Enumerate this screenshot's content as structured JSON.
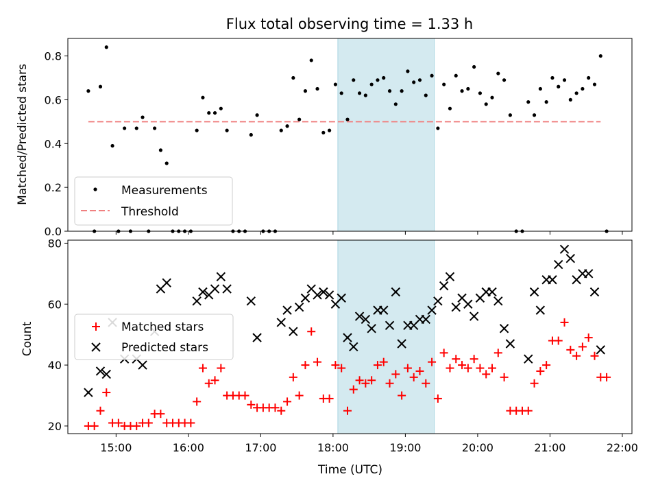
{
  "chart_data": [
    {
      "type": "scatter",
      "title": "Flux total observing time = 1.33 h",
      "xlabel": "",
      "ylabel": "Matched/Predicted stars",
      "xlim": [
        "14:20",
        "22:08"
      ],
      "ylim": [
        0,
        0.88
      ],
      "yticks": [
        "0.0",
        "0.2",
        "0.4",
        "0.6",
        "0.8"
      ],
      "highlight_span": {
        "from": "18:04",
        "to": "19:24",
        "color": "#d4eaf0"
      },
      "legend": {
        "placement": "lower-left",
        "entries": [
          {
            "label": "Measurements",
            "marker": "dot",
            "color": "#000000"
          },
          {
            "label": "Threshold",
            "marker": "dashed-line",
            "color": "#f08080"
          }
        ]
      },
      "series": [
        {
          "name": "Measurements",
          "color": "#000000",
          "points": [
            [
              "14:37",
              0.64
            ],
            [
              "14:42",
              0.0
            ],
            [
              "14:47",
              0.66
            ],
            [
              "14:52",
              0.84
            ],
            [
              "14:57",
              0.39
            ],
            [
              "15:02",
              0.0
            ],
            [
              "15:07",
              0.47
            ],
            [
              "15:12",
              0.0
            ],
            [
              "15:17",
              0.47
            ],
            [
              "15:22",
              0.52
            ],
            [
              "15:27",
              0.0
            ],
            [
              "15:32",
              0.47
            ],
            [
              "15:37",
              0.37
            ],
            [
              "15:42",
              0.31
            ],
            [
              "15:47",
              0.0
            ],
            [
              "15:52",
              0.0
            ],
            [
              "15:57",
              0.0
            ],
            [
              "16:02",
              0.0
            ],
            [
              "16:07",
              0.46
            ],
            [
              "16:12",
              0.61
            ],
            [
              "16:17",
              0.54
            ],
            [
              "16:22",
              0.54
            ],
            [
              "16:27",
              0.56
            ],
            [
              "16:32",
              0.46
            ],
            [
              "16:37",
              0.0
            ],
            [
              "16:42",
              0.0
            ],
            [
              "16:47",
              0.0
            ],
            [
              "16:52",
              0.44
            ],
            [
              "16:57",
              0.53
            ],
            [
              "17:02",
              0.0
            ],
            [
              "17:07",
              0.0
            ],
            [
              "17:12",
              0.0
            ],
            [
              "17:17",
              0.46
            ],
            [
              "17:22",
              0.48
            ],
            [
              "17:27",
              0.7
            ],
            [
              "17:32",
              0.51
            ],
            [
              "17:37",
              0.64
            ],
            [
              "17:42",
              0.78
            ],
            [
              "17:47",
              0.65
            ],
            [
              "17:52",
              0.45
            ],
            [
              "17:57",
              0.46
            ],
            [
              "18:02",
              0.67
            ],
            [
              "18:07",
              0.63
            ],
            [
              "18:12",
              0.51
            ],
            [
              "18:17",
              0.69
            ],
            [
              "18:22",
              0.63
            ],
            [
              "18:27",
              0.62
            ],
            [
              "18:32",
              0.67
            ],
            [
              "18:37",
              0.69
            ],
            [
              "18:42",
              0.7
            ],
            [
              "18:47",
              0.64
            ],
            [
              "18:52",
              0.58
            ],
            [
              "18:57",
              0.64
            ],
            [
              "19:02",
              0.73
            ],
            [
              "19:07",
              0.68
            ],
            [
              "19:12",
              0.69
            ],
            [
              "19:17",
              0.62
            ],
            [
              "19:22",
              0.71
            ],
            [
              "19:27",
              0.47
            ],
            [
              "19:32",
              0.67
            ],
            [
              "19:37",
              0.56
            ],
            [
              "19:42",
              0.71
            ],
            [
              "19:47",
              0.64
            ],
            [
              "19:52",
              0.65
            ],
            [
              "19:57",
              0.75
            ],
            [
              "20:02",
              0.63
            ],
            [
              "20:07",
              0.58
            ],
            [
              "20:12",
              0.61
            ],
            [
              "20:17",
              0.72
            ],
            [
              "20:22",
              0.69
            ],
            [
              "20:27",
              0.53
            ],
            [
              "20:32",
              0.0
            ],
            [
              "20:37",
              0.0
            ],
            [
              "20:42",
              0.59
            ],
            [
              "20:47",
              0.53
            ],
            [
              "20:52",
              0.65
            ],
            [
              "20:57",
              0.59
            ],
            [
              "21:02",
              0.7
            ],
            [
              "21:07",
              0.66
            ],
            [
              "21:12",
              0.69
            ],
            [
              "21:17",
              0.6
            ],
            [
              "21:22",
              0.63
            ],
            [
              "21:27",
              0.65
            ],
            [
              "21:32",
              0.7
            ],
            [
              "21:37",
              0.67
            ],
            [
              "21:42",
              0.8
            ],
            [
              "21:47",
              0.0
            ]
          ]
        },
        {
          "name": "Threshold",
          "color": "#f08080",
          "style": "dashed",
          "points": [
            [
              "14:37",
              0.5
            ],
            [
              "21:42",
              0.5
            ]
          ]
        }
      ]
    },
    {
      "type": "scatter",
      "title": "",
      "xlabel": "Time (UTC)",
      "ylabel": "Count",
      "xlim": [
        "14:20",
        "22:08"
      ],
      "ylim": [
        17.5,
        81
      ],
      "yticks": [
        "20",
        "40",
        "60",
        "80"
      ],
      "xticks": [
        "15:00",
        "16:00",
        "17:00",
        "18:00",
        "19:00",
        "20:00",
        "21:00",
        "22:00"
      ],
      "highlight_span": {
        "from": "18:04",
        "to": "19:24",
        "color": "#d4eaf0"
      },
      "legend": {
        "placement": "center-left",
        "entries": [
          {
            "label": "Matched stars",
            "marker": "plus",
            "color": "#ff0000"
          },
          {
            "label": "Predicted stars",
            "marker": "x",
            "color": "#000000"
          }
        ]
      },
      "series": [
        {
          "name": "Matched stars",
          "color": "#ff0000",
          "marker": "plus",
          "points": [
            [
              "14:37",
              20
            ],
            [
              "14:42",
              20
            ],
            [
              "14:47",
              25
            ],
            [
              "14:52",
              31
            ],
            [
              "14:57",
              21
            ],
            [
              "15:02",
              21
            ],
            [
              "15:07",
              20
            ],
            [
              "15:12",
              20
            ],
            [
              "15:17",
              20
            ],
            [
              "15:22",
              21
            ],
            [
              "15:27",
              21
            ],
            [
              "15:32",
              24
            ],
            [
              "15:37",
              24
            ],
            [
              "15:42",
              21
            ],
            [
              "15:47",
              21
            ],
            [
              "15:52",
              21
            ],
            [
              "15:57",
              21
            ],
            [
              "16:02",
              21
            ],
            [
              "16:07",
              28
            ],
            [
              "16:12",
              39
            ],
            [
              "16:17",
              34
            ],
            [
              "16:22",
              35
            ],
            [
              "16:27",
              39
            ],
            [
              "16:32",
              30
            ],
            [
              "16:37",
              30
            ],
            [
              "16:42",
              30
            ],
            [
              "16:47",
              30
            ],
            [
              "16:52",
              27
            ],
            [
              "16:57",
              26
            ],
            [
              "17:02",
              26
            ],
            [
              "17:07",
              26
            ],
            [
              "17:12",
              26
            ],
            [
              "17:17",
              25
            ],
            [
              "17:22",
              28
            ],
            [
              "17:27",
              36
            ],
            [
              "17:32",
              30
            ],
            [
              "17:37",
              40
            ],
            [
              "17:42",
              51
            ],
            [
              "17:47",
              41
            ],
            [
              "17:52",
              29
            ],
            [
              "17:57",
              29
            ],
            [
              "18:02",
              40
            ],
            [
              "18:07",
              39
            ],
            [
              "18:12",
              25
            ],
            [
              "18:17",
              32
            ],
            [
              "18:22",
              35
            ],
            [
              "18:27",
              34
            ],
            [
              "18:32",
              35
            ],
            [
              "18:37",
              40
            ],
            [
              "18:42",
              41
            ],
            [
              "18:47",
              34
            ],
            [
              "18:52",
              37
            ],
            [
              "18:57",
              30
            ],
            [
              "19:02",
              39
            ],
            [
              "19:07",
              36
            ],
            [
              "19:12",
              38
            ],
            [
              "19:17",
              34
            ],
            [
              "19:22",
              41
            ],
            [
              "19:27",
              29
            ],
            [
              "19:32",
              44
            ],
            [
              "19:37",
              39
            ],
            [
              "19:42",
              42
            ],
            [
              "19:47",
              40
            ],
            [
              "19:52",
              39
            ],
            [
              "19:57",
              42
            ],
            [
              "20:02",
              39
            ],
            [
              "20:07",
              37
            ],
            [
              "20:12",
              39
            ],
            [
              "20:17",
              44
            ],
            [
              "20:22",
              36
            ],
            [
              "20:27",
              25
            ],
            [
              "20:32",
              25
            ],
            [
              "20:37",
              25
            ],
            [
              "20:42",
              25
            ],
            [
              "20:47",
              34
            ],
            [
              "20:52",
              38
            ],
            [
              "20:57",
              40
            ],
            [
              "21:02",
              48
            ],
            [
              "21:07",
              48
            ],
            [
              "21:12",
              54
            ],
            [
              "21:17",
              45
            ],
            [
              "21:22",
              43
            ],
            [
              "21:27",
              46
            ],
            [
              "21:32",
              49
            ],
            [
              "21:37",
              43
            ],
            [
              "21:42",
              36
            ],
            [
              "21:47",
              36
            ]
          ]
        },
        {
          "name": "Predicted stars",
          "color": "#000000",
          "marker": "x",
          "points": [
            [
              "14:37",
              31
            ],
            [
              "14:47",
              38
            ],
            [
              "14:52",
              37
            ],
            [
              "14:57",
              54
            ],
            [
              "15:07",
              42
            ],
            [
              "15:17",
              42
            ],
            [
              "15:22",
              40
            ],
            [
              "15:32",
              51
            ],
            [
              "15:37",
              65
            ],
            [
              "15:42",
              67
            ],
            [
              "16:07",
              61
            ],
            [
              "16:12",
              64
            ],
            [
              "16:17",
              63
            ],
            [
              "16:22",
              65
            ],
            [
              "16:27",
              69
            ],
            [
              "16:32",
              65
            ],
            [
              "16:52",
              61
            ],
            [
              "16:57",
              49
            ],
            [
              "17:17",
              54
            ],
            [
              "17:22",
              58
            ],
            [
              "17:27",
              51
            ],
            [
              "17:32",
              59
            ],
            [
              "17:37",
              62
            ],
            [
              "17:42",
              65
            ],
            [
              "17:47",
              63
            ],
            [
              "17:52",
              64
            ],
            [
              "17:57",
              63
            ],
            [
              "18:02",
              60
            ],
            [
              "18:07",
              62
            ],
            [
              "18:12",
              49
            ],
            [
              "18:17",
              46
            ],
            [
              "18:22",
              56
            ],
            [
              "18:27",
              55
            ],
            [
              "18:32",
              52
            ],
            [
              "18:37",
              58
            ],
            [
              "18:42",
              58
            ],
            [
              "18:47",
              53
            ],
            [
              "18:52",
              64
            ],
            [
              "18:57",
              47
            ],
            [
              "19:02",
              53
            ],
            [
              "19:07",
              53
            ],
            [
              "19:12",
              55
            ],
            [
              "19:17",
              55
            ],
            [
              "19:22",
              58
            ],
            [
              "19:27",
              61
            ],
            [
              "19:32",
              66
            ],
            [
              "19:37",
              69
            ],
            [
              "19:42",
              59
            ],
            [
              "19:47",
              62
            ],
            [
              "19:52",
              60
            ],
            [
              "19:57",
              56
            ],
            [
              "20:02",
              62
            ],
            [
              "20:07",
              64
            ],
            [
              "20:12",
              64
            ],
            [
              "20:17",
              61
            ],
            [
              "20:22",
              52
            ],
            [
              "20:27",
              47
            ],
            [
              "20:42",
              42
            ],
            [
              "20:47",
              64
            ],
            [
              "20:52",
              58
            ],
            [
              "20:57",
              68
            ],
            [
              "21:02",
              68
            ],
            [
              "21:07",
              73
            ],
            [
              "21:12",
              78
            ],
            [
              "21:17",
              75
            ],
            [
              "21:22",
              68
            ],
            [
              "21:27",
              70
            ],
            [
              "21:32",
              70
            ],
            [
              "21:37",
              64
            ],
            [
              "21:42",
              45
            ]
          ]
        }
      ]
    }
  ]
}
